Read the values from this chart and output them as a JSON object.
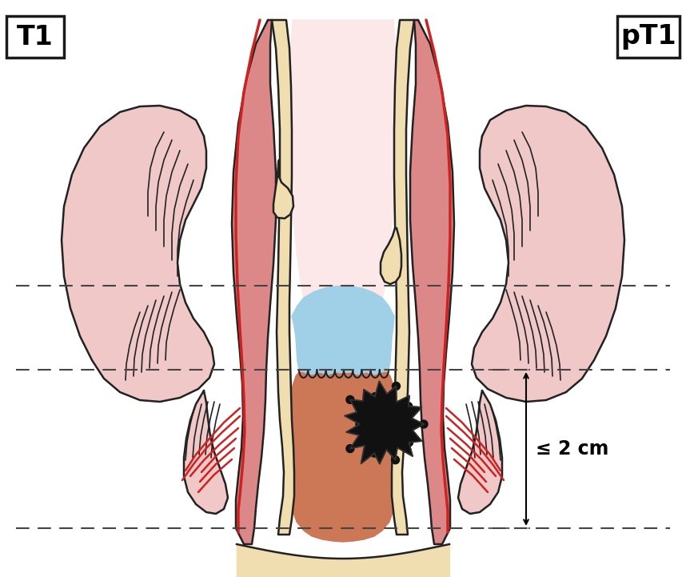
{
  "title_left": "T1",
  "title_right": "pT1",
  "annotation": "≤ 2 cm",
  "bg_color": "#ffffff",
  "label_box_color": "#ffffff",
  "label_box_edge": "#1a1a1a",
  "tissue_pink": "#f0c8c8",
  "tissue_pink_mid": "#e8a8a8",
  "tissue_pink_light": "#fce8e8",
  "inner_pink": "#f5d0d0",
  "canal_wall_color": "#e8a080",
  "canal_inner_color": "#cc7755",
  "blue_zone": "#9fd0e8",
  "tumor_color": "#111111",
  "dashed_line_color": "#444444",
  "outline_color": "#222222",
  "cream_color": "#f0ddb0",
  "cream_light": "#f8efd0",
  "red_vessel": "#cc2222",
  "vessel_pink": "#dd8888",
  "muscle_dark": "#c87060"
}
